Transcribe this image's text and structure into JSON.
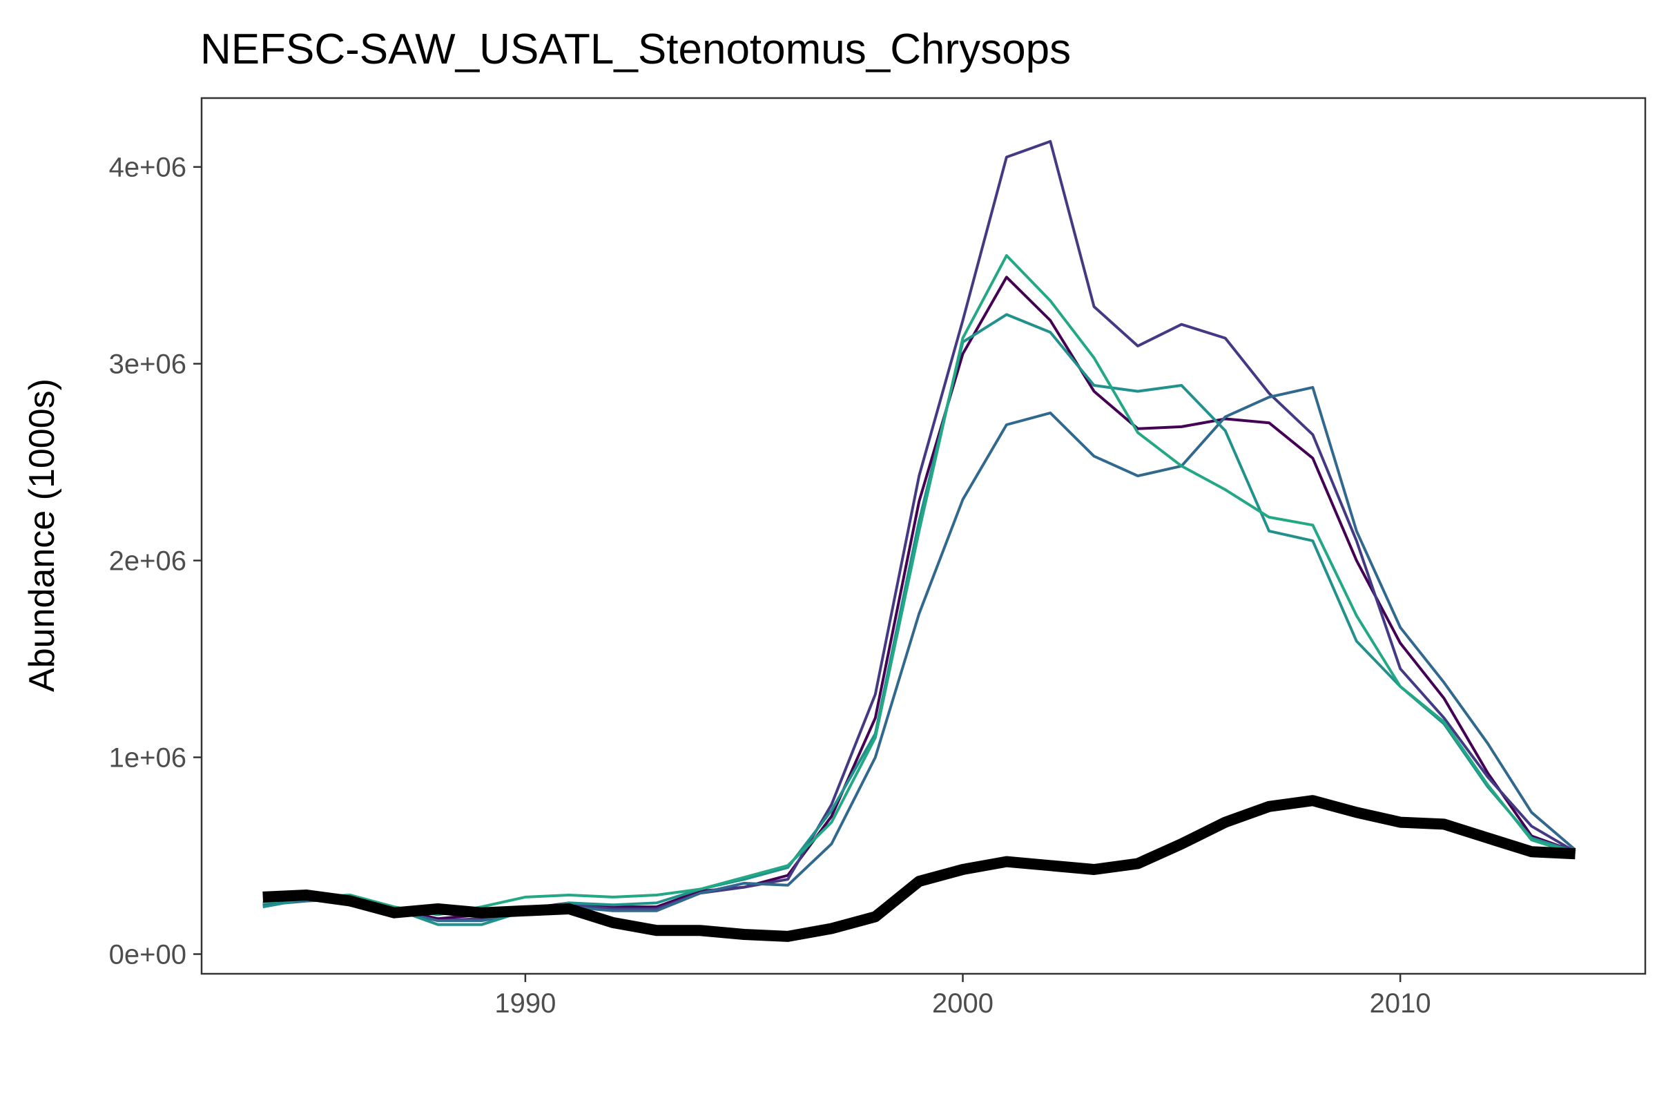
{
  "chart_data": {
    "type": "line",
    "title": "NEFSC-SAW_USATL_Stenotomus_Chrysops",
    "xlabel": "",
    "ylabel": "Abundance (1000s)",
    "xlim": [
      1982.6,
      2015.6
    ],
    "ylim": [
      -100000,
      4350000
    ],
    "x_ticks": [
      1990,
      2000,
      2010
    ],
    "x_tick_labels": [
      "1990",
      "2000",
      "2010"
    ],
    "y_ticks": [
      0,
      1000000,
      2000000,
      3000000,
      4000000
    ],
    "y_tick_labels": [
      "0e+00",
      "1e+06",
      "2e+06",
      "3e+06",
      "4e+06"
    ],
    "grid": false,
    "legend": "none",
    "x": [
      1984,
      1985,
      1986,
      1987,
      1988,
      1989,
      1990,
      1991,
      1992,
      1993,
      1994,
      1995,
      1996,
      1997,
      1998,
      1999,
      2000,
      2001,
      2002,
      2003,
      2004,
      2005,
      2006,
      2007,
      2008,
      2009,
      2010,
      2011,
      2012,
      2013,
      2014
    ],
    "series": [
      {
        "color": "#440154",
        "width": 4,
        "values": [
          260000,
          290000,
          290000,
          230000,
          180000,
          200000,
          230000,
          260000,
          240000,
          240000,
          320000,
          340000,
          400000,
          700000,
          1200000,
          2300000,
          3050000,
          3440000,
          3220000,
          2860000,
          2670000,
          2680000,
          2720000,
          2700000,
          2520000,
          2000000,
          1580000,
          1300000,
          920000,
          600000,
          520000
        ]
      },
      {
        "color": "#443983",
        "width": 4,
        "values": [
          250000,
          280000,
          290000,
          220000,
          170000,
          180000,
          220000,
          250000,
          230000,
          230000,
          310000,
          340000,
          380000,
          760000,
          1320000,
          2430000,
          3220000,
          4050000,
          4130000,
          3290000,
          3090000,
          3200000,
          3130000,
          2850000,
          2640000,
          2100000,
          1450000,
          1200000,
          900000,
          650000,
          520000
        ]
      },
      {
        "color": "#31688e",
        "width": 4,
        "values": [
          250000,
          270000,
          280000,
          220000,
          170000,
          170000,
          210000,
          240000,
          220000,
          220000,
          310000,
          360000,
          350000,
          560000,
          1000000,
          1730000,
          2310000,
          2690000,
          2750000,
          2530000,
          2430000,
          2480000,
          2730000,
          2830000,
          2880000,
          2150000,
          1660000,
          1380000,
          1070000,
          720000,
          530000
        ]
      },
      {
        "color": "#21918c",
        "width": 4,
        "values": [
          240000,
          280000,
          300000,
          230000,
          150000,
          150000,
          220000,
          260000,
          250000,
          260000,
          330000,
          380000,
          440000,
          730000,
          1120000,
          2200000,
          3110000,
          3250000,
          3160000,
          2890000,
          2860000,
          2890000,
          2660000,
          2150000,
          2100000,
          1590000,
          1360000,
          1170000,
          850000,
          590000,
          520000
        ]
      },
      {
        "color": "#22a884",
        "width": 4,
        "values": [
          260000,
          290000,
          300000,
          240000,
          200000,
          240000,
          290000,
          300000,
          290000,
          300000,
          330000,
          390000,
          450000,
          670000,
          1100000,
          2150000,
          3130000,
          3550000,
          3320000,
          3030000,
          2650000,
          2480000,
          2360000,
          2220000,
          2180000,
          1720000,
          1360000,
          1180000,
          860000,
          580000,
          510000
        ]
      },
      {
        "color": "#000000",
        "width": 16,
        "values": [
          290000,
          300000,
          270000,
          210000,
          230000,
          210000,
          220000,
          230000,
          160000,
          120000,
          120000,
          100000,
          90000,
          130000,
          190000,
          370000,
          430000,
          470000,
          450000,
          430000,
          460000,
          560000,
          670000,
          750000,
          780000,
          720000,
          670000,
          660000,
          590000,
          520000,
          510000
        ]
      }
    ]
  }
}
